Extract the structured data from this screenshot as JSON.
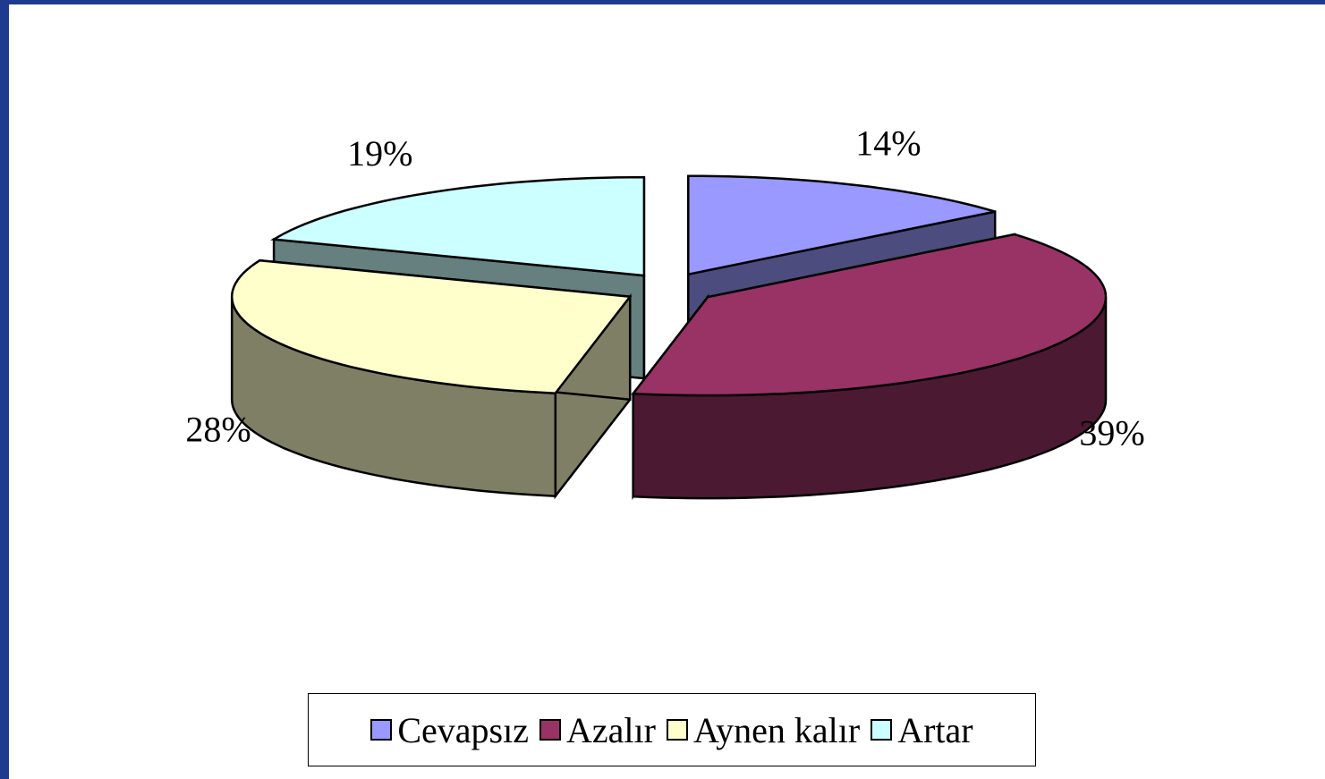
{
  "chart_data": {
    "type": "pie3d",
    "categories": [
      "Cevapsız",
      "Azalır",
      "Aynen kalır",
      "Artar"
    ],
    "values": [
      14,
      39,
      28,
      19
    ],
    "value_labels": [
      "14%",
      "39%",
      "28%",
      "19%"
    ],
    "colors": [
      "#9999ff",
      "#993366",
      "#ffffcc",
      "#ccffff"
    ],
    "legend": "bottom"
  }
}
